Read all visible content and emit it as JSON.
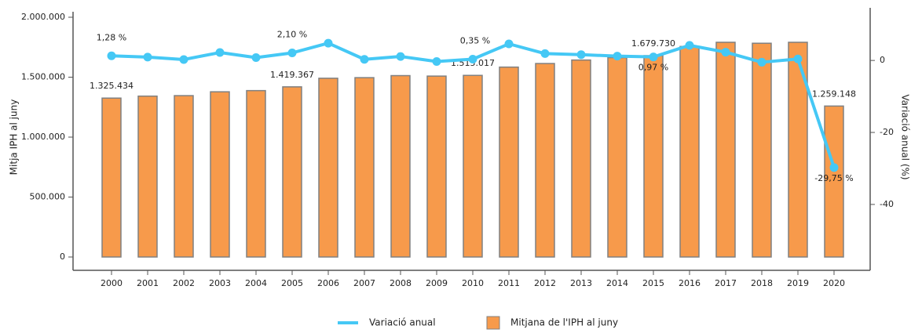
{
  "chart_data": {
    "type": "bar_line",
    "categories": [
      "2000",
      "2001",
      "2002",
      "2003",
      "2004",
      "2005",
      "2006",
      "2007",
      "2008",
      "2009",
      "2010",
      "2011",
      "2012",
      "2013",
      "2014",
      "2015",
      "2016",
      "2017",
      "2018",
      "2019",
      "2020"
    ],
    "series": [
      {
        "name": "Mitjana de l'IPH al juny",
        "type": "bar",
        "color": "#f79a4b",
        "stroke": "#808080",
        "values": [
          1325434,
          1342000,
          1346000,
          1378000,
          1388000,
          1419367,
          1491000,
          1496000,
          1513000,
          1509000,
          1515017,
          1584000,
          1614000,
          1643000,
          1663000,
          1679730,
          1756000,
          1791000,
          1783000,
          1791000,
          1259148
        ],
        "value_labels": [
          "1.325.434",
          null,
          null,
          null,
          null,
          "1.419.367",
          null,
          null,
          null,
          null,
          "1.515.017",
          null,
          null,
          null,
          null,
          "1.679.730",
          null,
          null,
          null,
          null,
          "1.259.148"
        ]
      },
      {
        "name": "Variació anual",
        "type": "line",
        "axis": "y2",
        "color": "#45c8f5",
        "values": [
          1.28,
          0.93,
          0.25,
          2.2,
          0.8,
          2.1,
          4.8,
          0.3,
          1.1,
          -0.3,
          0.35,
          4.6,
          1.9,
          1.6,
          1.2,
          0.97,
          4.2,
          2.3,
          -0.5,
          0.4,
          -29.75
        ],
        "value_labels": [
          "1,28 %",
          null,
          null,
          null,
          null,
          "2,10 %",
          null,
          null,
          null,
          null,
          "0,35 %",
          null,
          null,
          null,
          null,
          "0,97 %",
          null,
          null,
          null,
          null,
          "-29,75 %"
        ]
      }
    ],
    "ylabel": "Mitja IPH al juny",
    "y2label": "Variació anual (%)",
    "ylim": [
      0,
      2000000
    ],
    "yticks": [
      0,
      {
        "value": 500000,
        "label": "500.000"
      },
      {
        "value": 1000000,
        "label": "1.000.000"
      },
      {
        "value": 1500000,
        "label": "1.500.000"
      },
      {
        "value": 2000000,
        "label": "2.000.000"
      }
    ],
    "y2lim": [
      -54.6,
      12
    ],
    "y2ticks": [
      -40,
      -20,
      0
    ],
    "legend": "bottom"
  }
}
